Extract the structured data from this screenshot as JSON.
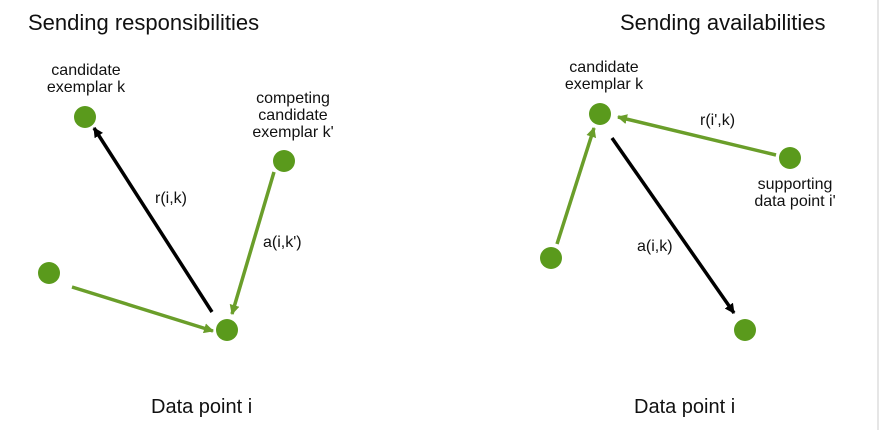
{
  "colors": {
    "node": "#5a9a1c",
    "green_arrow": "#6a9e2a",
    "black_arrow": "#000000",
    "background": "#ffffff",
    "text": "#111111"
  },
  "left_panel": {
    "title": "Sending responsibilities",
    "candidate_label": "candidate\nexemplar k",
    "competing_label": "competing\ncandidate\nexemplar k'",
    "edge_r_label": "r(i,k)",
    "edge_a_label": "a(i,k')",
    "footer": "Data point i"
  },
  "right_panel": {
    "title": "Sending availabilities",
    "candidate_label": "candidate\nexemplar k",
    "supporting_label": "supporting\ndata point i'",
    "edge_r_label": "r(i',k)",
    "edge_a_label": "a(i,k)",
    "footer": "Data point i"
  }
}
